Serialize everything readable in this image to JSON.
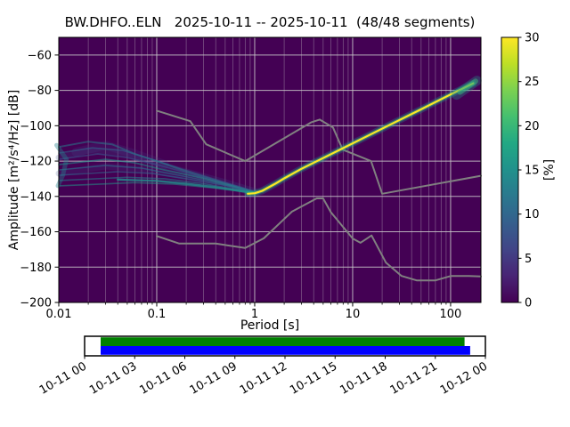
{
  "chart_data": {
    "type": "heatmap",
    "title": "BW.DHFO..ELN   2025-10-11 -- 2025-10-11  (48/48 segments)",
    "xlabel": "Period [s]",
    "ylabel": "Amplitude [m²/s⁴/Hz] [dB]",
    "xscale": "log",
    "xlim": [
      0.01,
      204
    ],
    "ylim": [
      -200,
      -50
    ],
    "grid": true,
    "background_color": "#440154",
    "x_tick_values": [
      0.01,
      0.1,
      1,
      10,
      100
    ],
    "x_tick_labels": [
      "0.01",
      "0.1",
      "1",
      "10",
      "100"
    ],
    "y_tick_values": [
      -60,
      -80,
      -100,
      -120,
      -140,
      -160,
      -180,
      -200
    ],
    "y_tick_labels": [
      "−60",
      "−80",
      "−100",
      "−120",
      "−140",
      "−160",
      "−180",
      "−200"
    ],
    "colorbar": {
      "label": "[%]",
      "range": [
        0,
        30
      ],
      "tick_values": [
        0,
        5,
        10,
        15,
        20,
        25,
        30
      ],
      "tick_labels": [
        "0",
        "5",
        "10",
        "15",
        "20",
        "25",
        "30"
      ],
      "cmap": "viridis",
      "gradient_stops": [
        "#440154",
        "#482475",
        "#414487",
        "#355f8d",
        "#2a788e",
        "#21918c",
        "#22a884",
        "#44bf70",
        "#7ad151",
        "#bddf26",
        "#fde725"
      ]
    },
    "noise_models": {
      "name": "Peterson noise models",
      "color": "#808080",
      "nhnm": [
        [
          0.1,
          -91.5
        ],
        [
          0.22,
          -97.4
        ],
        [
          0.32,
          -110.5
        ],
        [
          0.8,
          -120
        ],
        [
          3.8,
          -98
        ],
        [
          4.6,
          -96.5
        ],
        [
          6.3,
          -101
        ],
        [
          7.9,
          -113.5
        ],
        [
          15.4,
          -120
        ],
        [
          20,
          -138.5
        ],
        [
          204,
          -128.3
        ]
      ],
      "nlnm": [
        [
          0.1,
          -162.4
        ],
        [
          0.17,
          -166.7
        ],
        [
          0.4,
          -166.7
        ],
        [
          0.8,
          -169.2
        ],
        [
          1.24,
          -163.7
        ],
        [
          2.4,
          -148.6
        ],
        [
          4.3,
          -141.1
        ],
        [
          5,
          -141.1
        ],
        [
          6,
          -149
        ],
        [
          10,
          -163.8
        ],
        [
          12,
          -166.2
        ],
        [
          15.6,
          -162.1
        ],
        [
          21.9,
          -177.5
        ],
        [
          31.6,
          -185
        ],
        [
          45,
          -187.5
        ],
        [
          70,
          -187.5
        ],
        [
          101,
          -185
        ],
        [
          154,
          -185
        ],
        [
          204,
          -185.3
        ]
      ]
    },
    "psd_mode_line": {
      "points": [
        [
          0.85,
          -138.5
        ],
        [
          1.0,
          -138.2
        ],
        [
          1.2,
          -136.8
        ],
        [
          1.6,
          -133
        ],
        [
          2,
          -129.8
        ],
        [
          3,
          -124.4
        ],
        [
          6,
          -116.1
        ],
        [
          12,
          -107.8
        ],
        [
          25,
          -99
        ],
        [
          50,
          -90.7
        ],
        [
          100,
          -82.3
        ],
        [
          170,
          -76
        ]
      ],
      "layers": [
        {
          "color": "#21918c",
          "width": 8,
          "opacity": 0.3
        },
        {
          "color": "#35b779",
          "width": 4.5,
          "opacity": 0.55
        },
        {
          "color": "#fde725",
          "width": 2.2,
          "opacity": 1
        }
      ]
    },
    "psd_cloud": [
      {
        "color": "#443983",
        "width": 10,
        "opacity": 0.22,
        "points": [
          [
            0.015,
            -115
          ],
          [
            0.03,
            -111
          ],
          [
            0.06,
            -116
          ],
          [
            0.12,
            -122
          ]
        ]
      },
      {
        "color": "#3b528b",
        "width": 7,
        "opacity": 0.22,
        "points": [
          [
            0.01,
            -118
          ],
          [
            0.02,
            -114
          ],
          [
            0.04,
            -115
          ],
          [
            0.08,
            -120
          ],
          [
            0.2,
            -126
          ],
          [
            0.5,
            -132
          ],
          [
            1,
            -137
          ]
        ]
      },
      {
        "color": "#3b528b",
        "width": 7,
        "opacity": 0.2,
        "points": [
          [
            0.01,
            -127
          ],
          [
            0.03,
            -123
          ],
          [
            0.08,
            -125
          ],
          [
            0.2,
            -129
          ],
          [
            0.5,
            -134
          ],
          [
            1,
            -138
          ]
        ]
      },
      {
        "color": "#26828e",
        "width": 2,
        "opacity": 0.5,
        "points": [
          [
            0.01,
            -112
          ],
          [
            0.02,
            -109
          ],
          [
            0.035,
            -110.5
          ],
          [
            0.06,
            -116
          ],
          [
            0.1,
            -120
          ],
          [
            0.2,
            -126
          ],
          [
            0.4,
            -131
          ],
          [
            0.7,
            -135
          ],
          [
            1,
            -137.5
          ]
        ]
      },
      {
        "color": "#31688e",
        "width": 1.6,
        "opacity": 0.55,
        "points": [
          [
            0.01,
            -115.5
          ],
          [
            0.022,
            -112.5
          ],
          [
            0.045,
            -114
          ],
          [
            0.09,
            -119
          ],
          [
            0.18,
            -124.5
          ],
          [
            0.35,
            -129.5
          ],
          [
            0.7,
            -134.5
          ],
          [
            1,
            -137.5
          ]
        ]
      },
      {
        "color": "#3b528b",
        "width": 1.6,
        "opacity": 0.6,
        "points": [
          [
            0.01,
            -119
          ],
          [
            0.025,
            -116
          ],
          [
            0.05,
            -118
          ],
          [
            0.1,
            -122
          ],
          [
            0.25,
            -128
          ],
          [
            0.5,
            -132.5
          ],
          [
            0.9,
            -136.8
          ]
        ]
      },
      {
        "color": "#21918c",
        "width": 1.8,
        "opacity": 0.55,
        "points": [
          [
            0.01,
            -122
          ],
          [
            0.03,
            -119
          ],
          [
            0.06,
            -121
          ],
          [
            0.12,
            -125
          ],
          [
            0.3,
            -129.8
          ],
          [
            0.6,
            -134.2
          ],
          [
            1,
            -137.8
          ]
        ]
      },
      {
        "color": "#2c728e",
        "width": 1.6,
        "opacity": 0.6,
        "points": [
          [
            0.01,
            -125
          ],
          [
            0.03,
            -122.5
          ],
          [
            0.07,
            -124
          ],
          [
            0.15,
            -127.5
          ],
          [
            0.35,
            -131.5
          ],
          [
            0.7,
            -135.5
          ],
          [
            1.05,
            -138.2
          ]
        ]
      },
      {
        "color": "#31688e",
        "width": 1.6,
        "opacity": 0.6,
        "points": [
          [
            0.01,
            -128
          ],
          [
            0.04,
            -126
          ],
          [
            0.09,
            -127
          ],
          [
            0.2,
            -130
          ],
          [
            0.5,
            -133.8
          ],
          [
            0.9,
            -137.2
          ]
        ]
      },
      {
        "color": "#26828e",
        "width": 1.6,
        "opacity": 0.55,
        "points": [
          [
            0.01,
            -131
          ],
          [
            0.05,
            -129.2
          ],
          [
            0.12,
            -130
          ],
          [
            0.3,
            -132.8
          ],
          [
            0.7,
            -136.3
          ],
          [
            1.1,
            -138.4
          ]
        ]
      },
      {
        "color": "#1f9e89",
        "width": 1.6,
        "opacity": 0.5,
        "points": [
          [
            0.01,
            -134
          ],
          [
            0.06,
            -132.2
          ],
          [
            0.15,
            -133
          ],
          [
            0.4,
            -135.3
          ],
          [
            0.9,
            -137.9
          ]
        ]
      },
      {
        "color": "#21918c",
        "width": 2.4,
        "opacity": 0.8,
        "points": [
          [
            0.04,
            -130.5
          ],
          [
            0.1,
            -131.2
          ],
          [
            0.2,
            -132.8
          ],
          [
            0.4,
            -134.8
          ],
          [
            0.7,
            -136.8
          ],
          [
            1,
            -138.3
          ]
        ]
      },
      {
        "color": "#26828e",
        "width": 5,
        "opacity": 0.4,
        "points": [
          [
            0.0095,
            -111
          ],
          [
            0.012,
            -119
          ],
          [
            0.011,
            -128
          ],
          [
            0.0098,
            -134
          ]
        ]
      }
    ],
    "psd_highlights": [
      {
        "color": "#21918c",
        "width": 11,
        "opacity": 0.35,
        "points": [
          [
            115,
            -82.5
          ],
          [
            185,
            -74.5
          ]
        ]
      },
      {
        "color": "#35b779",
        "width": 6,
        "opacity": 0.5,
        "points": [
          [
            125,
            -81
          ],
          [
            180,
            -74.8
          ]
        ]
      }
    ]
  },
  "timeline": {
    "outer_fill": "#ffffff",
    "outer_stroke": "#000000",
    "coverage": {
      "color": "#008000",
      "start_frac": 0.04,
      "end_frac": 0.948
    },
    "extent": {
      "color": "#0000ff",
      "start_frac": 0.04,
      "end_frac": 0.962
    },
    "tick_labels": [
      "10-11 00",
      "10-11 03",
      "10-11 06",
      "10-11 09",
      "10-11 12",
      "10-11 15",
      "10-11 18",
      "10-11 21",
      "10-12 00"
    ]
  }
}
